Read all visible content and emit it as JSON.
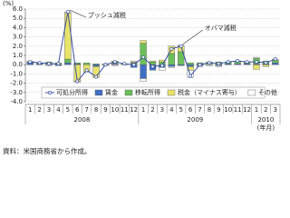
{
  "chart_data": {
    "type": "stacked-bar-line",
    "y_unit": "(%)",
    "x_unit": "(年月)",
    "source": "資料：米国商務省から作成。",
    "categories": [
      "1",
      "2",
      "3",
      "4",
      "5",
      "6",
      "7",
      "8",
      "9",
      "10",
      "11",
      "12",
      "1",
      "2",
      "3",
      "4",
      "5",
      "6",
      "7",
      "8",
      "9",
      "10",
      "11",
      "12",
      "1",
      "2",
      "3"
    ],
    "years": [
      "2008",
      "2009",
      "2010"
    ],
    "ylim": [
      -4,
      6
    ],
    "yticks": [
      {
        "value": -4,
        "label": "-4.0"
      },
      {
        "value": -3,
        "label": "-3.0"
      },
      {
        "value": -2,
        "label": "-2.0"
      },
      {
        "value": -1,
        "label": "-1.0"
      },
      {
        "value": 0,
        "label": "0.0"
      },
      {
        "value": 1,
        "label": "1.0"
      },
      {
        "value": 2,
        "label": "2.0"
      },
      {
        "value": 3,
        "label": "3.0"
      },
      {
        "value": 4,
        "label": "4.0"
      },
      {
        "value": 5,
        "label": "5.0"
      },
      {
        "value": 6,
        "label": "6.0"
      }
    ],
    "grid": true,
    "legend": "lower center",
    "line": {
      "name": "可処分所得",
      "color": "#3a4fa0",
      "values": [
        0.3,
        0.2,
        0.1,
        0.1,
        5.7,
        -1.8,
        -0.6,
        -1.3,
        0.0,
        0.3,
        0.1,
        0.0,
        0.8,
        -0.2,
        -0.1,
        1.7,
        2.0,
        -1.2,
        0.0,
        0.2,
        0.1,
        0.3,
        0.4,
        0.3,
        0.3,
        0.2,
        0.6
      ]
    },
    "series": [
      {
        "name": "賃金",
        "color": "#3f6fc4",
        "values": [
          0.2,
          0.1,
          0.1,
          -0.1,
          0.2,
          0.1,
          0.0,
          -0.2,
          0.0,
          0.1,
          0.0,
          -0.3,
          -1.5,
          -0.6,
          -0.3,
          -0.2,
          -0.1,
          -0.2,
          -0.1,
          0.0,
          -0.1,
          0.1,
          0.1,
          0.1,
          0.1,
          0.1,
          0.2
        ]
      },
      {
        "name": "移転所得",
        "color": "#6cbf5a",
        "values": [
          0.1,
          0.1,
          0.2,
          0.2,
          0.4,
          0.1,
          0.2,
          0.1,
          0.1,
          0.2,
          0.1,
          0.2,
          2.3,
          0.3,
          0.3,
          1.2,
          1.4,
          0.2,
          0.2,
          0.2,
          0.3,
          0.2,
          0.3,
          0.1,
          0.6,
          0.3,
          0.3
        ]
      },
      {
        "name": "税金（マイナス寄与）",
        "color": "#e8e36a",
        "values": [
          0.0,
          0.0,
          0.0,
          0.0,
          5.0,
          -1.8,
          -0.8,
          -1.2,
          0.0,
          0.1,
          0.0,
          0.1,
          0.3,
          0.1,
          0.2,
          0.8,
          0.6,
          -0.4,
          0.0,
          0.1,
          0.0,
          0.0,
          0.0,
          0.1,
          -0.5,
          -0.2,
          0.0
        ]
      },
      {
        "name": "その他",
        "color": "#ffffff",
        "values": [
          0.1,
          0.0,
          -0.1,
          0.0,
          0.1,
          -0.1,
          0.0,
          0.0,
          -0.1,
          -0.1,
          0.0,
          0.1,
          -0.3,
          0.0,
          -0.3,
          -0.1,
          0.1,
          -0.8,
          -0.1,
          -0.1,
          -0.1,
          0.0,
          0.0,
          0.0,
          0.1,
          0.0,
          0.1
        ]
      }
    ],
    "annotations": [
      {
        "text": "ブッシュ減税",
        "index": 4
      },
      {
        "text": "オバマ減税",
        "index": 16
      }
    ]
  }
}
